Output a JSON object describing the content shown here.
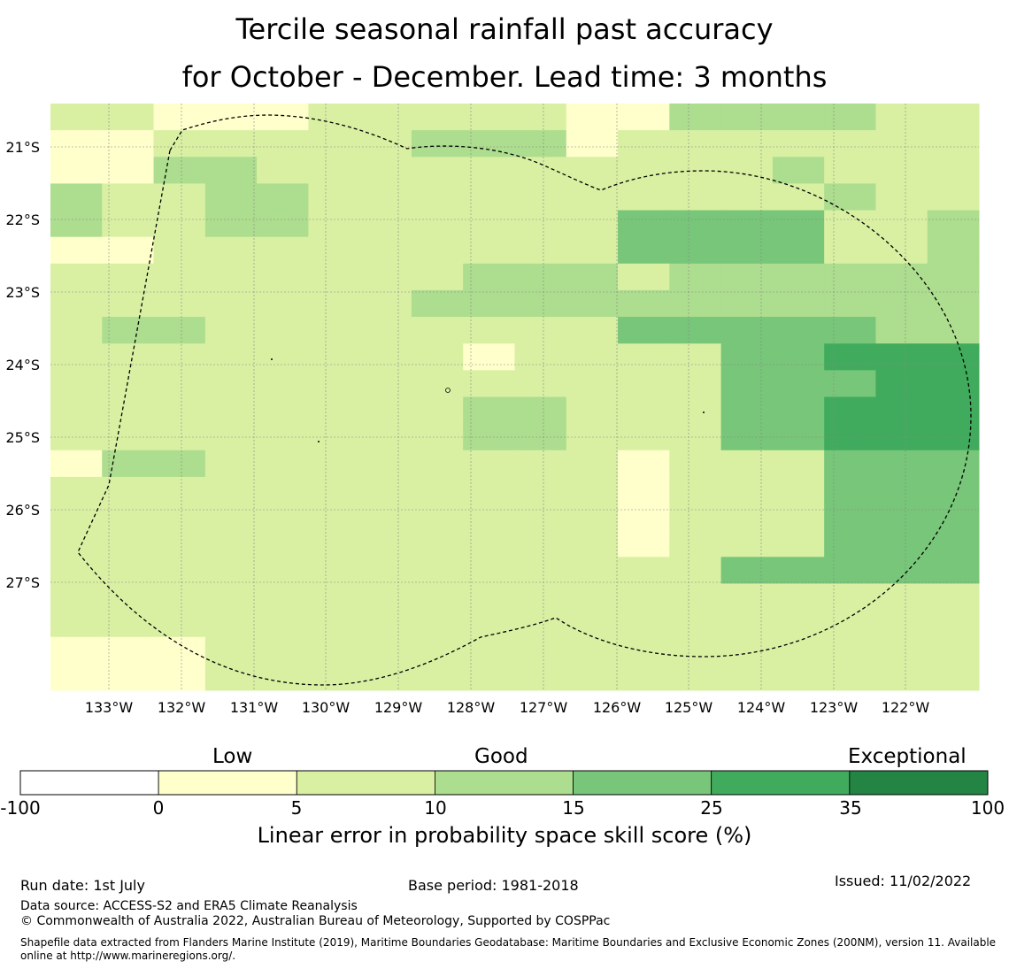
{
  "title": {
    "line1": "Tercile seasonal rainfall past accuracy",
    "line2": "for October - December. Lead time: 3 months"
  },
  "map": {
    "lon_labels": [
      "133°W",
      "132°W",
      "131°W",
      "130°W",
      "129°W",
      "128°W",
      "127°W",
      "126°W",
      "125°W",
      "124°W",
      "123°W",
      "122°W"
    ],
    "lat_labels": [
      "21°S",
      "22°S",
      "23°S",
      "24°S",
      "25°S",
      "26°S",
      "27°S"
    ],
    "cell_classes": [
      "221112222211333322",
      "112222233312222222",
      "113322222222223222",
      "322332222222222322",
      "322332222224444223",
      "112222222224444223",
      "222222223332333333",
      "222222233333333333",
      "233222222224444433",
      "222222221222244555",
      "222222222222244455",
      "222222223322244555",
      "222222223322244555",
      "133222222221222444",
      "222222222221222444",
      "222222222221222444",
      "222222222221222444",
      "222222222222244444",
      "222222222222222222",
      "222222222222222222",
      "111222222222222222",
      "111222222222222222"
    ],
    "colors": [
      "#ffffff",
      "#ffffcc",
      "#d9f0a3",
      "#addd8e",
      "#78c679",
      "#41ab5d",
      "#238443"
    ]
  },
  "colorbar": {
    "categories": [
      "Low",
      "Good",
      "Exceptional"
    ],
    "ticks": [
      "-100",
      "0",
      "5",
      "10",
      "15",
      "25",
      "35",
      "100"
    ],
    "colors": [
      "#ffffff",
      "#ffffcc",
      "#d9f0a3",
      "#addd8e",
      "#78c679",
      "#41ab5d",
      "#238443"
    ],
    "xlabel": "Linear error in probability space skill score (%)"
  },
  "footer": {
    "run_date": "Run date: 1st July",
    "base_period": "Base period: 1981-2018",
    "issued": "Issued: 11/02/2022",
    "data_source": "Data source: ACCESS-S2 and ERA5 Climate Reanalysis",
    "copyright": "© Commonwealth of Australia 2022, Australian Bureau of Meteorology, Supported by COSPPac",
    "shapefile": "Shapefile data extracted from Flanders Marine Institute (2019), Maritime Boundaries Geodatabase: Maritime Boundaries and Exclusive Economic Zones (200NM), version 11. Available online at http://www.marineregions.org/."
  }
}
